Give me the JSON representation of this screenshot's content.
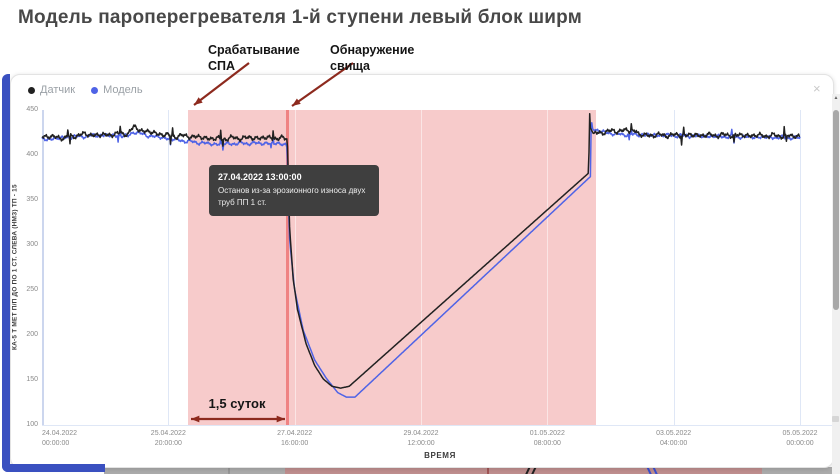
{
  "page": {
    "title": "Модель пароперегревателя 1-й ступени левый блок ширм"
  },
  "annotations": {
    "spa_trigger": {
      "line1": "Срабатывание",
      "line2": "СПА"
    },
    "leak_detected": {
      "line1": "Обнаружение",
      "line2": "свища"
    },
    "duration": "1,5 суток",
    "arrow_color": "#8d2a1e"
  },
  "legend": {
    "items": [
      {
        "label": "Датчик",
        "color": "#212121"
      },
      {
        "label": "Модель",
        "color": "#4f63e6"
      }
    ]
  },
  "tooltip": {
    "timestamp": "27.04.2022 13:00:00",
    "text": "Останов из-за эрозионного износа двух труб ПП 1 ст."
  },
  "icons": {
    "close": "×",
    "scroll_up": "▲"
  },
  "chart_data": {
    "type": "line",
    "title": "Модель пароперегревателя 1-й ступени левый блок ширм",
    "xlabel": "ВРЕМЯ",
    "ylabel": "КА-5 Т МЕТ П/П ДО ПО 1 СТ. СЛЕВА (НМЗ) ТП - 15",
    "ylim": [
      100,
      450
    ],
    "yticks": [
      450,
      400,
      350,
      300,
      250,
      200,
      150,
      100
    ],
    "xticks": [
      {
        "date": "24.04.2022",
        "time": "00:00:00"
      },
      {
        "date": "25.04.2022",
        "time": "20:00:00"
      },
      {
        "date": "27.04.2022",
        "time": "16:00:00"
      },
      {
        "date": "29.04.2022",
        "time": "12:00:00"
      },
      {
        "date": "01.05.2022",
        "time": "08:00:00"
      },
      {
        "date": "03.05.2022",
        "time": "04:00:00"
      },
      {
        "date": "05.05.2022",
        "time": "00:00:00"
      }
    ],
    "x_hours_range": [
      0,
      264
    ],
    "x_tick_step_hours": 44,
    "grid": true,
    "legend_position": "top-left",
    "event_region": {
      "start_h": 51,
      "end_h": 193,
      "fill": "rgba(237,130,130,0.42)"
    },
    "event_line": {
      "at_h": 85.5,
      "color": "#ef8383",
      "label": "Обнаружение свища"
    },
    "noise_windows": [
      [
        0,
        85.2
      ],
      [
        192.5,
        264
      ]
    ],
    "series": [
      {
        "name": "Модель",
        "color": "#4f63e6",
        "noise_amp": 0.8,
        "anchors": [
          [
            0,
            417
          ],
          [
            10,
            420
          ],
          [
            20,
            422
          ],
          [
            30,
            421
          ],
          [
            32,
            426
          ],
          [
            36,
            422
          ],
          [
            51,
            415
          ],
          [
            60,
            412
          ],
          [
            70,
            413
          ],
          [
            80,
            413
          ],
          [
            85.2,
            412
          ],
          [
            85.5,
            393
          ],
          [
            85.8,
            350
          ],
          [
            86.3,
            303
          ],
          [
            88,
            250
          ],
          [
            91,
            205
          ],
          [
            95,
            172
          ],
          [
            99,
            152
          ],
          [
            103,
            136
          ],
          [
            106,
            131
          ],
          [
            109,
            131
          ],
          [
            191,
            376
          ],
          [
            191.3,
            441
          ],
          [
            191.8,
            428
          ],
          [
            200,
            423
          ],
          [
            230,
            421
          ],
          [
            264,
            419
          ]
        ]
      },
      {
        "name": "Датчик",
        "color": "#212121",
        "noise_amp": 1.1,
        "anchors": [
          [
            0,
            421
          ],
          [
            8,
            419
          ],
          [
            14,
            423
          ],
          [
            20,
            422
          ],
          [
            30,
            424
          ],
          [
            32,
            431
          ],
          [
            35,
            427
          ],
          [
            45,
            421
          ],
          [
            51,
            421
          ],
          [
            60,
            418
          ],
          [
            70,
            419
          ],
          [
            80,
            419
          ],
          [
            85.4,
            418
          ],
          [
            85.6,
            400
          ],
          [
            85.9,
            358
          ],
          [
            86.3,
            315
          ],
          [
            87.5,
            262
          ],
          [
            89,
            228
          ],
          [
            92,
            190
          ],
          [
            95,
            166
          ],
          [
            98,
            151
          ],
          [
            101,
            143
          ],
          [
            104,
            141
          ],
          [
            107,
            143
          ],
          [
            190.4,
            380
          ],
          [
            190.7,
            449
          ],
          [
            191,
            430
          ],
          [
            192,
            424
          ],
          [
            200,
            427
          ],
          [
            207,
            427
          ],
          [
            208,
            422
          ],
          [
            240,
            422
          ],
          [
            264,
            421
          ]
        ]
      }
    ]
  }
}
